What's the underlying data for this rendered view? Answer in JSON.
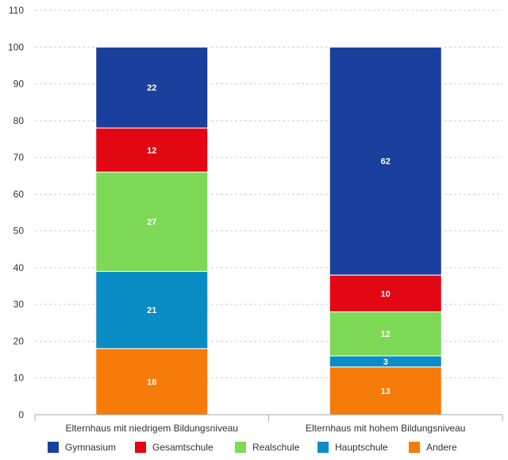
{
  "chart_data": {
    "type": "bar",
    "stacked": true,
    "categories": [
      "Elternhaus mit niedrigem Bildungsniveau",
      "Elternhaus mit hohem Bildungsniveau"
    ],
    "series": [
      {
        "name": "Andere",
        "color": "#f77b08",
        "values": [
          18,
          13
        ]
      },
      {
        "name": "Hauptschule",
        "color": "#0a8cc4",
        "values": [
          21,
          3
        ]
      },
      {
        "name": "Realschule",
        "color": "#7ed956",
        "values": [
          27,
          12
        ]
      },
      {
        "name": "Gesamtschule",
        "color": "#e30613",
        "values": [
          12,
          10
        ]
      },
      {
        "name": "Gymnasium",
        "color": "#1a3f9c",
        "values": [
          22,
          62
        ]
      }
    ],
    "ylim": [
      0,
      110
    ],
    "yticks": [
      0,
      10,
      20,
      30,
      40,
      50,
      60,
      70,
      80,
      90,
      100,
      110
    ],
    "grid": true,
    "legend_position": "bottom",
    "legend_order": [
      "Gymnasium",
      "Gesamtschule",
      "Realschule",
      "Hauptschule",
      "Andere"
    ]
  }
}
